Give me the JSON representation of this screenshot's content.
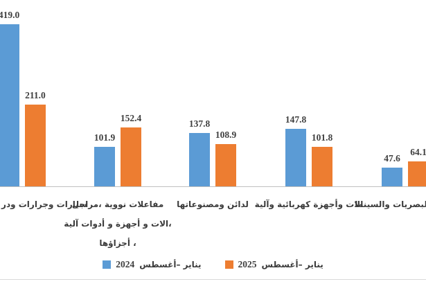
{
  "chart_data": {
    "type": "bar",
    "title": "",
    "xlabel": "",
    "ylabel": "",
    "ylim": [
      0,
      481
    ],
    "grid": false,
    "legend_position": "bottom",
    "direction": "rtl",
    "value_label_decimals": 1,
    "categories": [
      {
        "lines": [
          "سيارات وجرارات ودر"
        ],
        "clipped": "left-edge"
      },
      {
        "lines": [
          "مفاعلات نووية ،مراجل",
          "،الات و أجهزة و أدوات آلية",
          "، أجزاؤها"
        ]
      },
      {
        "lines": [
          "لدائن ومصنوعاتها"
        ]
      },
      {
        "lines": [
          "الات وأجهزة كهربائية وآلية"
        ]
      },
      {
        "lines": [
          "للبصريات والسينما"
        ],
        "clipped": "right-edge"
      }
    ],
    "series": [
      {
        "name": "يناير –أغسطس 2024",
        "label_text": "يناير –أغسطس",
        "label_year": "2024",
        "color": "#5B9BD5",
        "values": [
          419.0,
          101.9,
          137.8,
          147.8,
          47.6
        ]
      },
      {
        "name": "يناير –أغسطس 2025",
        "label_text": "يناير –أغسطس",
        "label_year": "2025",
        "color": "#ED7D31",
        "values": [
          211.0,
          152.4,
          108.9,
          101.8,
          64.1
        ]
      }
    ]
  },
  "colors": {
    "axis_line": "#BFBFBF",
    "bottom_border": "#D9D9D9",
    "text": "#3F3F3F",
    "series_2024": "#5B9BD5",
    "series_2025": "#ED7D31"
  }
}
